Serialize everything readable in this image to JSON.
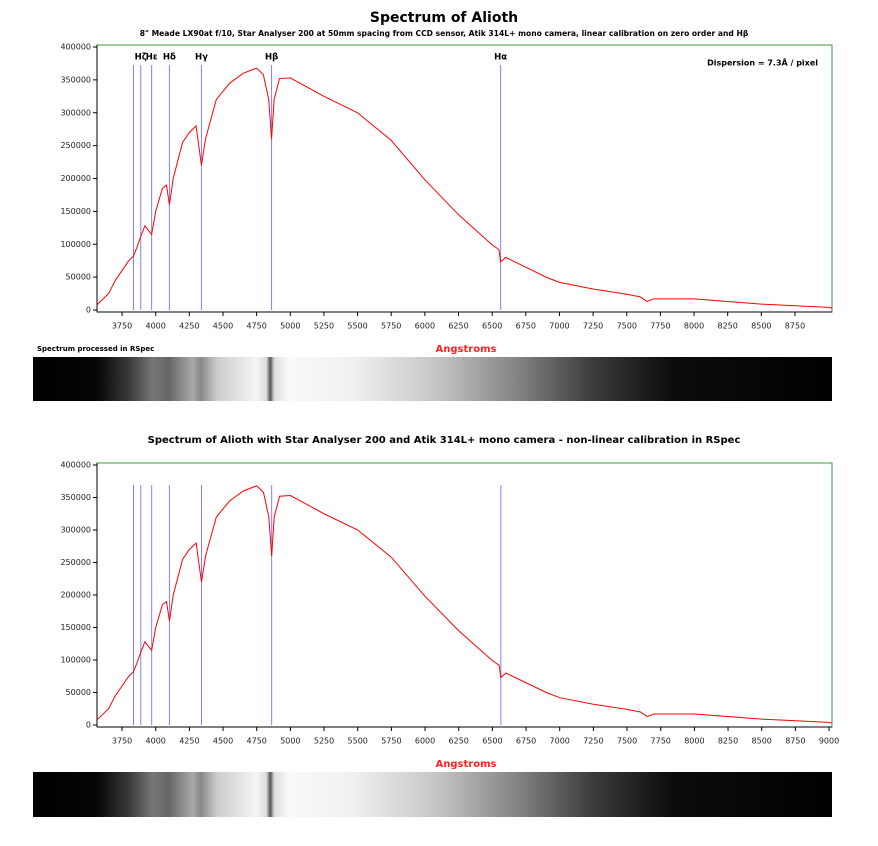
{
  "chart_data": [
    {
      "type": "line",
      "title": "Spectrum of Alioth",
      "subtitle": "8\" Meade LX90at f/10, Star Analyser 200 at 50mm spacing from CCD sensor, Atik 314L+ mono camera, linear calibration on zero order and Hβ",
      "x_label": "Angstroms",
      "annotations": [
        "Dispersion = 7.3Å / pixel",
        "Spectrum processed in RSpec"
      ],
      "x": [
        3565,
        3650,
        3700,
        3750,
        3800,
        3835,
        3860,
        3889,
        3920,
        3950,
        3970,
        4000,
        4050,
        4080,
        4102,
        4130,
        4200,
        4250,
        4300,
        4340,
        4370,
        4450,
        4550,
        4650,
        4750,
        4800,
        4840,
        4861,
        4880,
        4920,
        5000,
        5250,
        5500,
        5750,
        6000,
        6250,
        6500,
        6550,
        6563,
        6600,
        6700,
        6900,
        7000,
        7250,
        7500,
        7600,
        7650,
        7700,
        8000,
        8500,
        9000,
        9025
      ],
      "values": [
        8000,
        25000,
        45000,
        60000,
        75000,
        82000,
        95000,
        112000,
        128000,
        120000,
        115000,
        150000,
        185000,
        190000,
        160000,
        200000,
        255000,
        270000,
        280000,
        220000,
        260000,
        320000,
        345000,
        360000,
        368000,
        358000,
        320000,
        260000,
        320000,
        352000,
        353000,
        325000,
        300000,
        258000,
        198000,
        145000,
        99000,
        92000,
        73000,
        80000,
        70000,
        50000,
        42000,
        32000,
        24000,
        20000,
        13000,
        17000,
        17000,
        9000,
        4000,
        3000
      ],
      "color": "#ff0000",
      "vlines": {
        "color": "#8080ff",
        "x": [
          3835,
          3889,
          3970,
          4102,
          4340,
          4861,
          6563
        ],
        "labels": [
          null,
          "Hζ",
          "Hε",
          "Hδ",
          "Hγ",
          "Hβ",
          "Hα"
        ]
      },
      "xlim": [
        3564,
        9025
      ],
      "xticks": [
        3750,
        4000,
        4250,
        4500,
        4750,
        5000,
        5250,
        5500,
        5750,
        6000,
        6250,
        6500,
        6750,
        7000,
        7250,
        7500,
        7750,
        8000,
        8250,
        8500,
        8750
      ],
      "ylim": [
        0,
        400000
      ],
      "yticks": [
        0,
        50000,
        100000,
        150000,
        200000,
        250000,
        300000,
        350000,
        400000
      ],
      "frame_color": "#3c9a3c"
    },
    {
      "type": "line",
      "title": "Spectrum of Alioth with Star Analyser 200 and Atik 314L+ mono camera - non-linear calibration in RSpec",
      "x_label": "Angstroms",
      "x": [
        3565,
        3650,
        3700,
        3750,
        3800,
        3835,
        3860,
        3889,
        3920,
        3950,
        3970,
        4000,
        4050,
        4080,
        4102,
        4130,
        4200,
        4250,
        4300,
        4340,
        4370,
        4450,
        4550,
        4650,
        4750,
        4800,
        4840,
        4861,
        4880,
        4920,
        5000,
        5250,
        5500,
        5750,
        6000,
        6250,
        6500,
        6550,
        6563,
        6600,
        6700,
        6900,
        7000,
        7250,
        7500,
        7600,
        7650,
        7700,
        8000,
        8500,
        9000,
        9020
      ],
      "values": [
        8000,
        25000,
        45000,
        60000,
        75000,
        82000,
        95000,
        112000,
        128000,
        120000,
        115000,
        150000,
        185000,
        190000,
        160000,
        200000,
        255000,
        270000,
        280000,
        220000,
        260000,
        320000,
        345000,
        360000,
        368000,
        358000,
        320000,
        260000,
        320000,
        352000,
        353000,
        325000,
        300000,
        258000,
        198000,
        145000,
        99000,
        92000,
        73000,
        80000,
        70000,
        50000,
        42000,
        32000,
        24000,
        20000,
        13000,
        17000,
        17000,
        9000,
        4000,
        3000
      ],
      "color": "#ff0000",
      "vlines": {
        "color": "#8080ff",
        "x": [
          3835,
          3889,
          3970,
          4102,
          4340,
          4861,
          6563
        ]
      },
      "xlim": [
        3564,
        9022
      ],
      "xticks": [
        3750,
        4000,
        4250,
        4500,
        4750,
        5000,
        5250,
        5500,
        5750,
        6000,
        6250,
        6500,
        6750,
        7000,
        7250,
        7500,
        7750,
        8000,
        8250,
        8500,
        8750,
        9000
      ],
      "ylim": [
        0,
        400000
      ],
      "yticks": [
        0,
        50000,
        100000,
        150000,
        200000,
        250000,
        300000,
        350000,
        400000
      ],
      "frame_color": "#3c9a3c"
    }
  ]
}
